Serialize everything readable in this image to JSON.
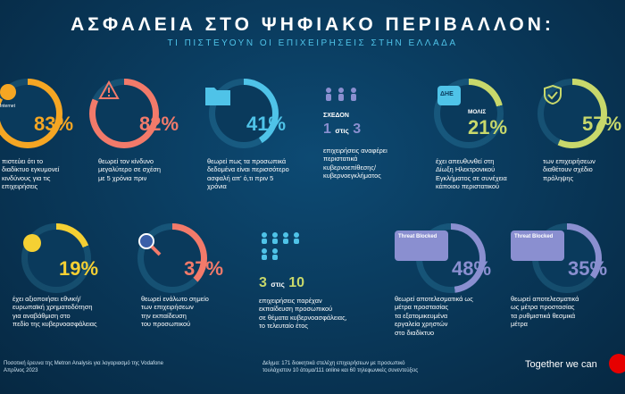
{
  "header": {
    "title": "ΑΣΦΑΛΕΙΑ ΣΤΟ ΨΗΦΙΑΚΟ ΠΕΡΙΒΑΛΛΟΝ:",
    "subtitle": "ΤΙ ΠΙΣΤΕΥΟΥΝ ΟΙ ΕΠΙΧΕΙΡΗΣΕΙΣ ΣΤΗΝ ΕΛΛΑΔΑ"
  },
  "stats": [
    {
      "value": "83%",
      "fraction": 0.83,
      "color": "#f5a623",
      "desc": "πιστεύει ότι το\nδιαδίκτυο εγκυμονεί\nκινδύνους για τις\nεπιχειρήσεις",
      "icon": "globe-icon",
      "icon_label": "Internet"
    },
    {
      "value": "82%",
      "fraction": 0.82,
      "color": "#f27a6a",
      "desc": "θεωρεί τον κίνδυνο\nμεγαλύτερο σε σχέση\nμε 5 χρόνια πριν",
      "icon": "warning-icon"
    },
    {
      "value": "41%",
      "fraction": 0.41,
      "color": "#4fc3e8",
      "desc": "θεωρεί πως τα προσωπικά\nδεδομένα είναι περισσότερο\nασφαλή απ' ό,τι πριν 5\nχρόνια",
      "icon": "folder-icon"
    },
    {
      "value": "21%",
      "fraction": 0.21,
      "color": "#c8d86b",
      "desc": "έχει απευθυνθεί στη\nΔίωξη Ηλεκτρονικού\nΕγκλήματος σε συνέχεια\nκάποιου περιστατικού",
      "icon": "shield-icon",
      "icon_label": "ΔΗΕ",
      "prefix": "ΜΟΛΙΣ"
    },
    {
      "value": "57%",
      "fraction": 0.57,
      "color": "#c8d86b",
      "desc": "των επιχειρήσεων\nδιαθέτουν σχέδιο\nπρόληψης",
      "icon": "check-shield-icon"
    },
    {
      "value": "19%",
      "fraction": 0.19,
      "color": "#f5d033",
      "desc": "έχει αξιοποιήσει εθνική/\nευρωπαϊκή χρηματοδότηση\nγια αναβάθμιση στο\nπεδίο της κυβερνοασφάλειας",
      "icon": "coin-icon"
    },
    {
      "value": "37%",
      "fraction": 0.37,
      "color": "#f27a6a",
      "desc": "θεωρεί ενάλωτο σημείο\nτων επιχειρήσεων\nτην εκπαίδευση\nτου προσωπικού",
      "icon": "magnifier-icon"
    },
    {
      "value": "48%",
      "fraction": 0.48,
      "color": "#8a8fd0",
      "desc": "θεωρεί αποτελεσματικά ως\nμέτρα προστασίας\nτα εξατομικευμένα\nεργαλεία χρηστών\nστο διαδίκτυο",
      "icon": "threat-blocked-icon",
      "icon_label": "Threat Blocked"
    },
    {
      "value": "35%",
      "fraction": 0.35,
      "color": "#8a8fd0",
      "desc": "θεωρεί αποτελεσματικά\nως μέτρα προστασίας\nτα ρυθμιστικά θεσμικά\nμέτρα",
      "icon": "threat-blocked-icon",
      "icon_label": "Threat Blocked"
    }
  ],
  "fraction_stats": [
    {
      "prefix": "ΣΧΕΔΟΝ",
      "num": "1",
      "mid": "στις",
      "den": "3",
      "desc": "επιχειρήσεις αναφέρει\nπεριστατικά\nκυβερνοεπίθεσης/\nκυβερνοεγκλήματος",
      "icon": "people-icon"
    },
    {
      "num": "3",
      "mid": "στις",
      "den": "10",
      "desc": "επιχειρήσεις παρέχαν\nεκπαίδευση προσωπικού\nσε θέματα κυβερνοασφάλειας,\nτο τελευταίο έτος",
      "icon": "people-icon"
    }
  ],
  "footer": {
    "left": "Ποσοτική έρευνα της Metron Analysis για λογαριασμό της Vodafone\nΑπρίλιος 2023",
    "middle": "Δείγμα: 171 διοικητικά στελέχη επιχειρήσεων με προσωπικό\nτουλάχιστον 10 άτομα/111 online και 60 τηλεφωνικές συνεντεύξεις",
    "tagline": "Together we can"
  }
}
